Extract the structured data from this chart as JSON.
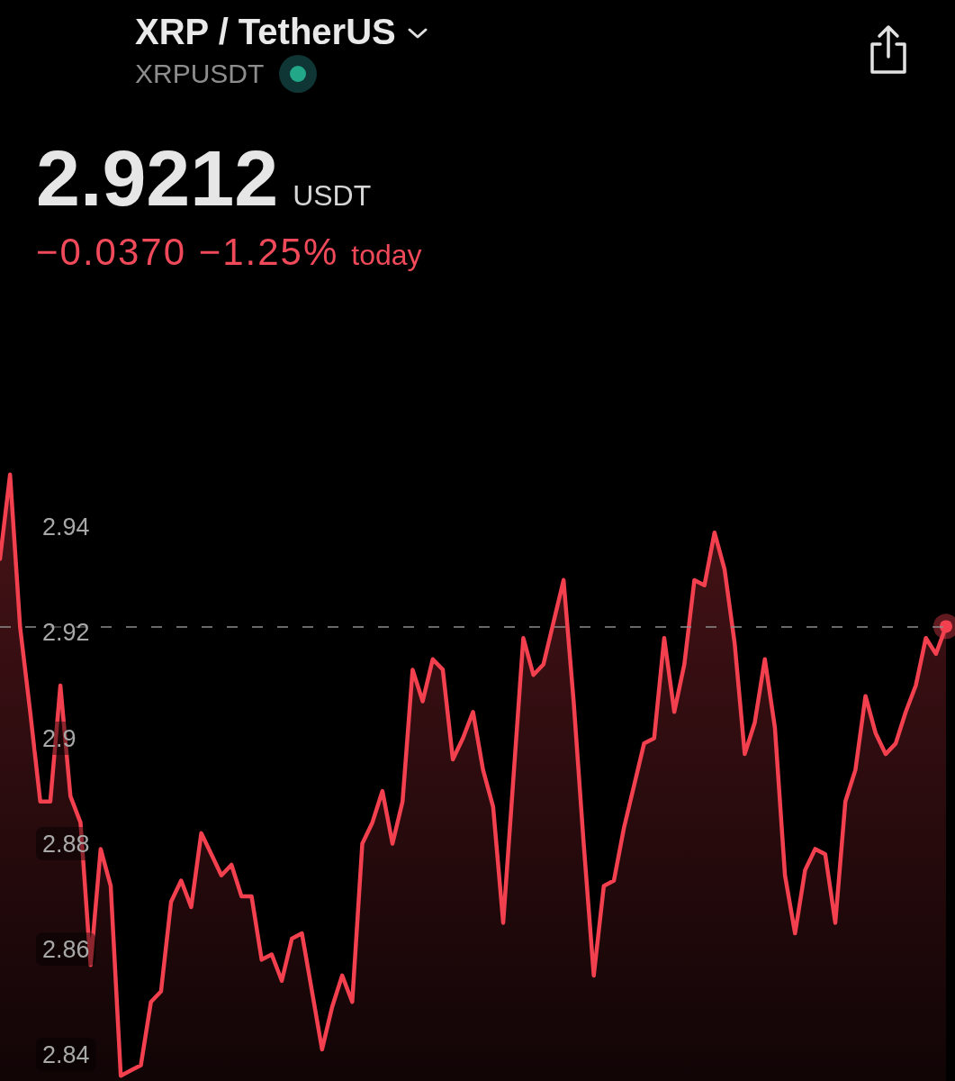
{
  "chart_data": {
    "type": "area",
    "title": "XRP / TetherUS",
    "subtitle": "XRPUSDT",
    "annotations": [
      "2.9212",
      "USDT",
      "−0.0370 −1.25%",
      "today"
    ],
    "categories": [
      null,
      null,
      null,
      null,
      null,
      null,
      null,
      null,
      null,
      null,
      null,
      null,
      null,
      null,
      null,
      null,
      null,
      null,
      null,
      null,
      null,
      null,
      null,
      null,
      null,
      null,
      null,
      null,
      null,
      null,
      null,
      null,
      null,
      null,
      null,
      null,
      null,
      null,
      null,
      null,
      null,
      null,
      null,
      null,
      null,
      null,
      null,
      null,
      null,
      null,
      null,
      null,
      null,
      null,
      null,
      null,
      null,
      null,
      null,
      null,
      null,
      null,
      null,
      null,
      null,
      null,
      null,
      null,
      null,
      null,
      null,
      null,
      null,
      null,
      null,
      null,
      null,
      null,
      null,
      null,
      null,
      null,
      null,
      null,
      null,
      null,
      null,
      null,
      null,
      null,
      null,
      null,
      null,
      null,
      null
    ],
    "series": [
      {
        "color": "#f2404f",
        "values": [
          2.934,
          2.95,
          2.921,
          2.905,
          2.888,
          2.888,
          2.91,
          2.889,
          2.884,
          2.857,
          2.879,
          2.872,
          2.836,
          2.837,
          2.838,
          2.85,
          2.852,
          2.869,
          2.873,
          2.868,
          2.882,
          2.878,
          2.874,
          2.876,
          2.87,
          2.87,
          2.858,
          2.859,
          2.854,
          2.862,
          2.863,
          2.852,
          2.841,
          2.849,
          2.855,
          2.85,
          2.88,
          2.884,
          2.89,
          2.88,
          2.888,
          2.913,
          2.907,
          2.915,
          2.913,
          2.896,
          2.9,
          2.905,
          2.894,
          2.887,
          2.865,
          2.892,
          2.919,
          2.912,
          2.914,
          2.922,
          2.93,
          2.907,
          2.88,
          2.855,
          2.872,
          2.873,
          2.883,
          2.891,
          2.899,
          2.9,
          2.919,
          2.905,
          2.914,
          2.93,
          2.929,
          2.939,
          2.932,
          2.918,
          2.897,
          2.903,
          2.915,
          2.902,
          2.874,
          2.863,
          2.875,
          2.879,
          2.878,
          2.865,
          2.888,
          2.894,
          2.908,
          2.901,
          2.897,
          2.899,
          2.905,
          2.91,
          2.919,
          2.916,
          2.9212
        ]
      }
    ],
    "ylim": [
      2.835,
      3.04
    ],
    "yticks": [
      2.84,
      2.86,
      2.88,
      2.9,
      2.92,
      2.94
    ],
    "tick_labels": "y",
    "marker": "none",
    "line_style": "solid",
    "ref_lines": [
      {
        "axis": "y",
        "value": 2.9212,
        "color": "#8c8c8c",
        "line_style": "dashed"
      }
    ]
  }
}
